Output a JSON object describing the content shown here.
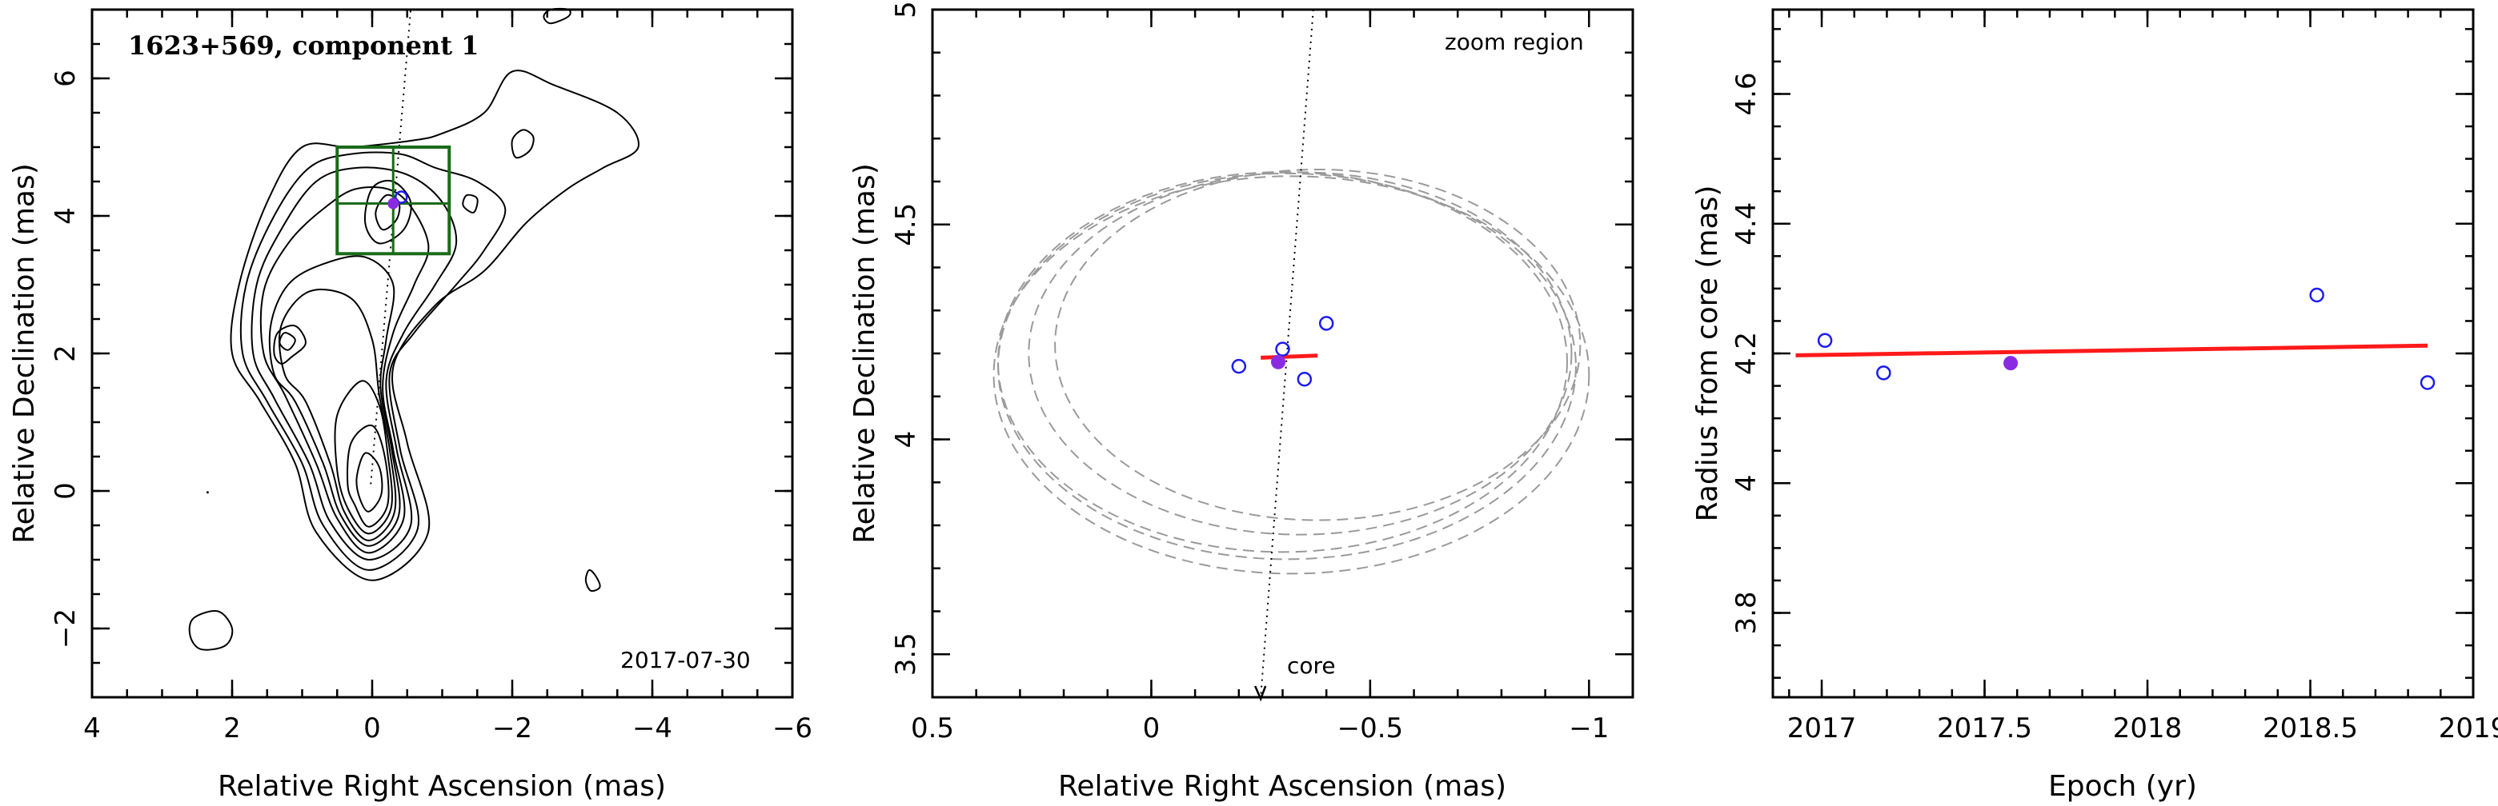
{
  "chart_data": [
    {
      "type": "contour",
      "title": "1623+569, component 1",
      "date_label": "2017-07-30",
      "xlabel": "Relative Right Ascension (mas)",
      "ylabel": "Relative Declination (mas)",
      "xlim": [
        4,
        -6
      ],
      "ylim": [
        -3,
        7
      ],
      "xticks": [
        4,
        2,
        0,
        -2,
        -4,
        -6
      ],
      "yticks": [
        -2,
        0,
        2,
        4,
        6
      ],
      "xtick_labels": [
        "4",
        "2",
        "0",
        "−2",
        "−4",
        "−6"
      ],
      "ytick_labels": [
        "−2",
        "0",
        "2",
        "4",
        "6"
      ],
      "component_position": {
        "x": -0.3,
        "y": 4.18
      },
      "zoom_box": {
        "x": [
          0.5,
          -1.1
        ],
        "y": [
          3.45,
          5.0
        ]
      },
      "colors": {
        "zoom_box": "#1a6b1a",
        "component": "#8a2be2",
        "contours": "#000000"
      }
    },
    {
      "type": "scatter",
      "xlabel": "Relative Right Ascension (mas)",
      "ylabel": "Relative Declination (mas)",
      "xlim": [
        0.5,
        -1.1
      ],
      "ylim": [
        3.4,
        5.0
      ],
      "xticks": [
        0.5,
        0,
        -0.5,
        -1
      ],
      "yticks": [
        3.5,
        4,
        4.5,
        5
      ],
      "xtick_labels": [
        "0.5",
        "0",
        "−0.5",
        "−1"
      ],
      "ytick_labels": [
        "3.5",
        "4",
        "4.5",
        "5"
      ],
      "annotations": [
        "zoom region",
        "core"
      ],
      "open_points": [
        {
          "x": -0.2,
          "y": 4.17
        },
        {
          "x": -0.3,
          "y": 4.21
        },
        {
          "x": -0.4,
          "y": 4.27
        },
        {
          "x": -0.35,
          "y": 4.14
        }
      ],
      "filled_points": [
        {
          "x": -0.29,
          "y": 4.18
        }
      ],
      "fit_segment": [
        {
          "x": -0.25,
          "y": 4.19
        },
        {
          "x": -0.38,
          "y": 4.195
        }
      ],
      "uncertainty_circles": [
        {
          "cx": -0.31,
          "cy": 4.17,
          "r": 0.66
        },
        {
          "cx": -0.34,
          "cy": 4.2,
          "r": 0.62
        },
        {
          "cx": -0.32,
          "cy": 4.15,
          "r": 0.68
        },
        {
          "cx": -0.38,
          "cy": 4.22,
          "r": 0.6
        },
        {
          "cx": -0.3,
          "cy": 4.18,
          "r": 0.65
        }
      ],
      "colors": {
        "open_points": "#1c1cf0",
        "filled_point": "#8a2be2",
        "fit": "#ff1a1a",
        "circles": "#9a9a9a"
      }
    },
    {
      "type": "scatter",
      "xlabel": "Epoch (yr)",
      "ylabel": "Radius from core (mas)",
      "xlim": [
        2016.85,
        2019.0
      ],
      "ylim": [
        3.67,
        4.73
      ],
      "xticks": [
        2017,
        2017.5,
        2018,
        2018.5,
        2019
      ],
      "yticks": [
        3.8,
        4,
        4.2,
        4.4,
        4.6
      ],
      "xtick_labels": [
        "2017",
        "2017.5",
        "2018",
        "2018.5",
        "2019"
      ],
      "ytick_labels": [
        "3.8",
        "4",
        "4.2",
        "4.4",
        "4.6"
      ],
      "open_points": [
        {
          "x": 2017.01,
          "y": 4.22
        },
        {
          "x": 2017.19,
          "y": 4.17
        },
        {
          "x": 2018.52,
          "y": 4.29
        },
        {
          "x": 2018.86,
          "y": 4.155
        }
      ],
      "filled_points": [
        {
          "x": 2017.58,
          "y": 4.185
        }
      ],
      "fit_line": [
        {
          "x": 2016.92,
          "y": 4.197
        },
        {
          "x": 2018.86,
          "y": 4.212
        }
      ],
      "colors": {
        "open_points": "#1c1cf0",
        "filled_point": "#8a2be2",
        "fit": "#ff1a1a"
      }
    }
  ]
}
